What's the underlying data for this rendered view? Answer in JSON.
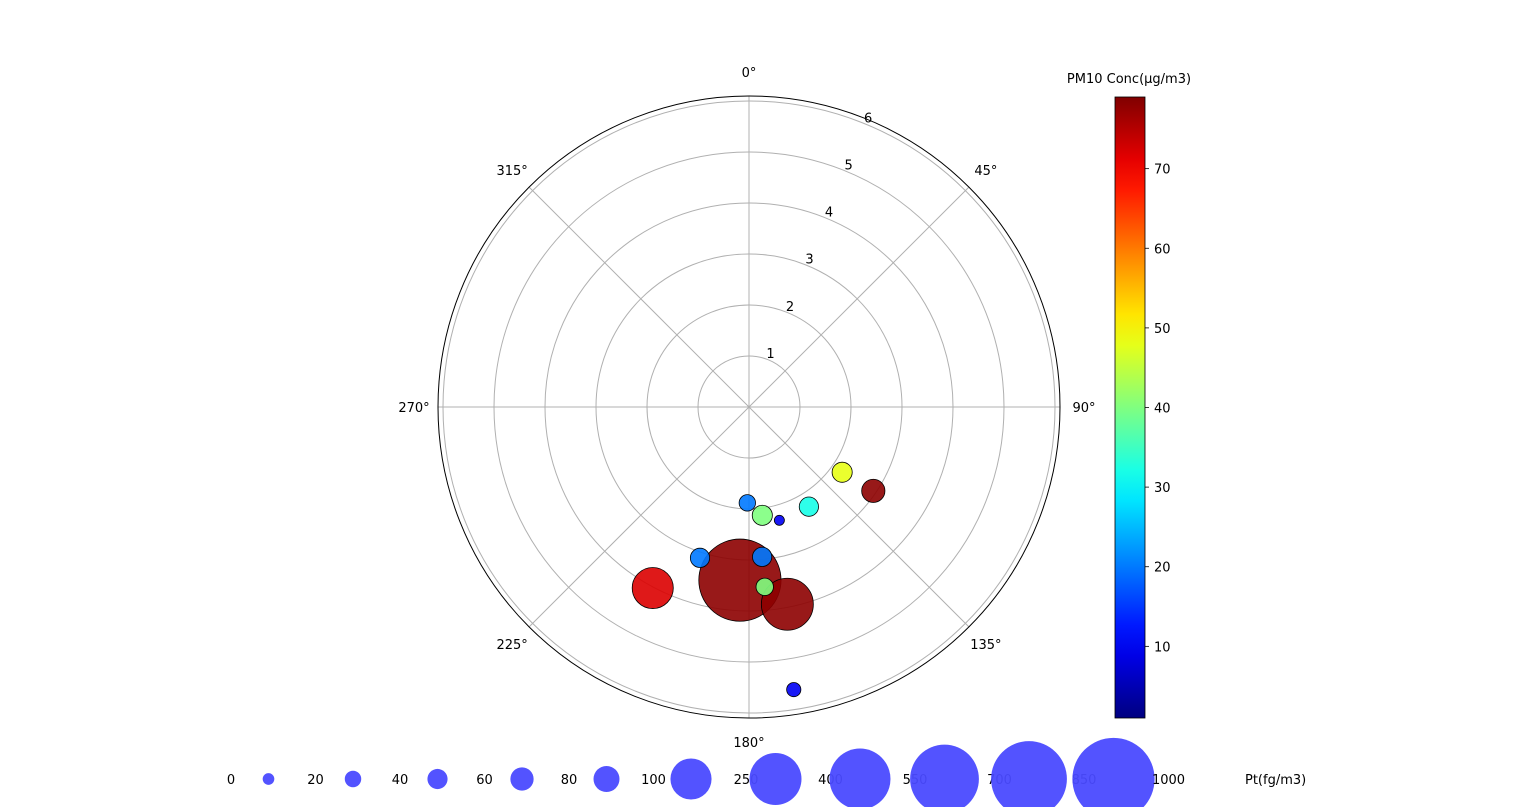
{
  "chart_data": {
    "type": "scatter",
    "projection": "polar",
    "theta_direction": "clockwise",
    "theta_zero": "north",
    "r_range": [
      0,
      6.1
    ],
    "r_ticks": [
      1,
      2,
      3,
      4,
      5,
      6
    ],
    "theta_ticks": [
      "0°",
      "45°",
      "90°",
      "135°",
      "180°",
      "225°",
      "270°",
      "315°"
    ],
    "grid": true,
    "points": [
      {
        "theta_deg": 125,
        "r": 2.23,
        "pm10": 48,
        "pt": 60
      },
      {
        "theta_deg": 124,
        "r": 2.94,
        "pm10": 78,
        "pt": 80
      },
      {
        "theta_deg": 149,
        "r": 2.28,
        "pm10": 32,
        "pt": 55
      },
      {
        "theta_deg": 181,
        "r": 1.88,
        "pm10": 20,
        "pt": 40
      },
      {
        "theta_deg": 173,
        "r": 2.14,
        "pm10": 40,
        "pt": 60
      },
      {
        "theta_deg": 165,
        "r": 2.3,
        "pm10": 10,
        "pt": 15
      },
      {
        "theta_deg": 175,
        "r": 2.95,
        "pm10": 20,
        "pt": 55
      },
      {
        "theta_deg": 198,
        "r": 3.11,
        "pm10": 20,
        "pt": 55
      },
      {
        "theta_deg": 183,
        "r": 3.4,
        "pm10": 78,
        "pt": 1000
      },
      {
        "theta_deg": 175,
        "r": 3.54,
        "pm10": 40,
        "pt": 45
      },
      {
        "theta_deg": 169,
        "r": 3.94,
        "pm10": 78,
        "pt": 400
      },
      {
        "theta_deg": 208,
        "r": 4.02,
        "pm10": 72,
        "pt": 250
      },
      {
        "theta_deg": 171,
        "r": 5.61,
        "pm10": 10,
        "pt": 30
      }
    ],
    "colorbar": {
      "title": "PM10 Conc(μg/m3)",
      "range": [
        1,
        79
      ],
      "ticks": [
        10,
        20,
        30,
        40,
        50,
        60,
        70
      ],
      "colormap": "jet"
    },
    "size_legend": {
      "title": "Pt(fg/m3)",
      "entries": [
        0,
        20,
        40,
        60,
        80,
        100,
        250,
        400,
        550,
        700,
        850,
        1000
      ],
      "color": "#4a4aff"
    }
  }
}
